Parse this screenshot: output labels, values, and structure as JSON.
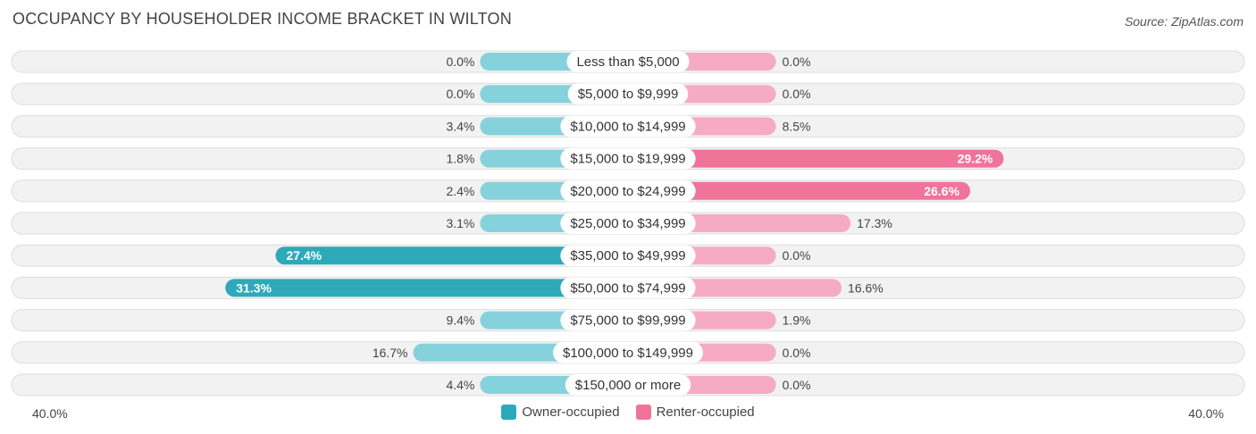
{
  "chart_data": {
    "type": "bar",
    "orientation": "horizontal-diverging",
    "title": "OCCUPANCY BY HOUSEHOLDER INCOME BRACKET IN WILTON",
    "source": "Source: ZipAtlas.com",
    "categories": [
      "Less than $5,000",
      "$5,000 to $9,999",
      "$10,000 to $14,999",
      "$15,000 to $19,999",
      "$20,000 to $24,999",
      "$25,000 to $34,999",
      "$35,000 to $49,999",
      "$50,000 to $74,999",
      "$75,000 to $99,999",
      "$100,000 to $149,999",
      "$150,000 or more"
    ],
    "series": [
      {
        "name": "Owner-occupied",
        "values": [
          0.0,
          0.0,
          3.4,
          1.8,
          2.4,
          3.1,
          27.4,
          31.3,
          9.4,
          16.7,
          4.4
        ],
        "labels": [
          "0.0%",
          "0.0%",
          "3.4%",
          "1.8%",
          "2.4%",
          "3.1%",
          "27.4%",
          "31.3%",
          "9.4%",
          "16.7%",
          "4.4%"
        ]
      },
      {
        "name": "Renter-occupied",
        "values": [
          0.0,
          0.0,
          8.5,
          29.2,
          26.6,
          17.3,
          0.0,
          16.6,
          1.9,
          0.0,
          0.0
        ],
        "labels": [
          "0.0%",
          "0.0%",
          "8.5%",
          "29.2%",
          "26.6%",
          "17.3%",
          "0.0%",
          "16.6%",
          "1.9%",
          "0.0%",
          "0.0%"
        ]
      }
    ],
    "xlim": [
      -40,
      40
    ],
    "axis_min_label": "40.0%",
    "axis_max_label": "40.0%",
    "legend_position": "bottom-center"
  },
  "colors": {
    "owner_dark": "#2ea9b9",
    "owner_light": "#86d2dc",
    "renter_dark": "#f0739a",
    "renter_light": "#f7aac3",
    "track": "#f2f2f2",
    "track_border": "#dddddd"
  }
}
